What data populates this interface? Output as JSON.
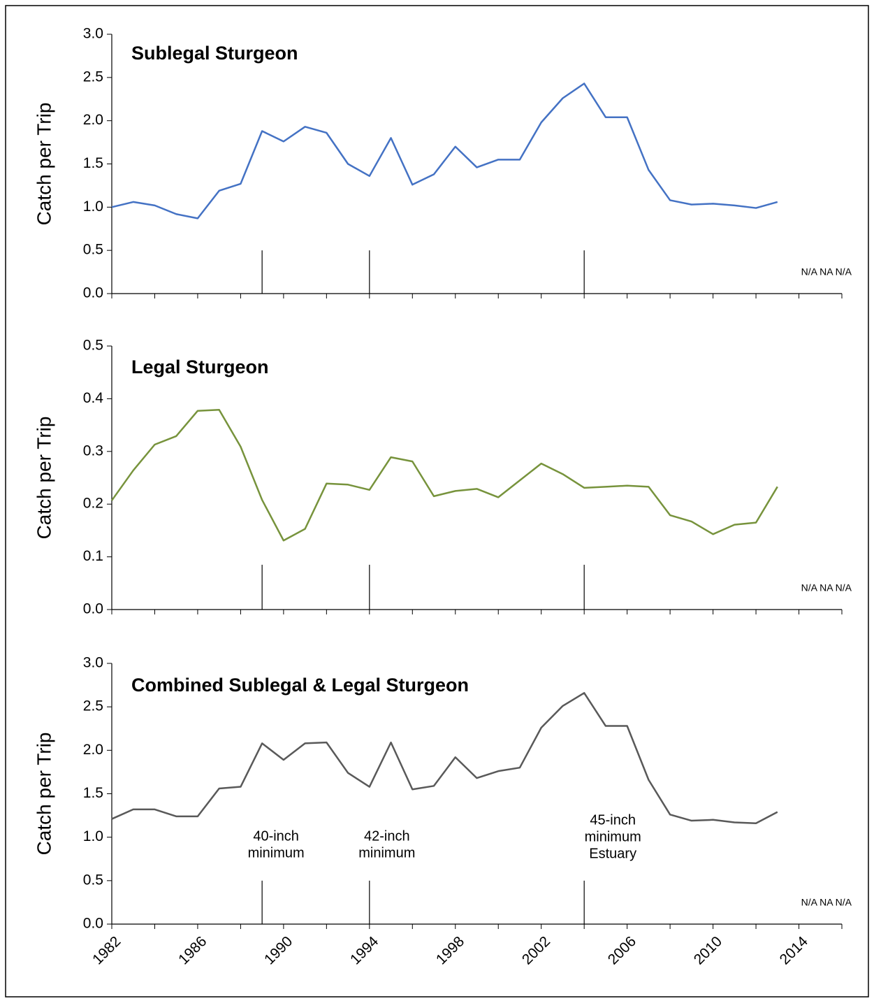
{
  "chart_data": [
    {
      "type": "line",
      "title": "Sublegal Sturgeon",
      "title_color": "#1a237e",
      "ylabel": "Catch per Trip",
      "color": "#4472c4",
      "x": [
        1982,
        1983,
        1984,
        1985,
        1986,
        1987,
        1988,
        1989,
        1990,
        1991,
        1992,
        1993,
        1994,
        1995,
        1996,
        1997,
        1998,
        1999,
        2000,
        2001,
        2002,
        2003,
        2004,
        2005,
        2006,
        2007,
        2008,
        2009,
        2010,
        2011,
        2012,
        2013
      ],
      "values": [
        1.0,
        1.06,
        1.02,
        0.92,
        0.87,
        1.19,
        1.27,
        1.88,
        1.76,
        1.93,
        1.86,
        1.5,
        1.36,
        1.8,
        1.26,
        1.38,
        1.7,
        1.46,
        1.55,
        1.55,
        1.98,
        2.26,
        2.43,
        2.04,
        2.04,
        1.43,
        1.08,
        1.03,
        1.04,
        1.02,
        0.99,
        1.06
      ],
      "xlim": [
        1982,
        2016
      ],
      "xticks": [
        1982,
        1986,
        1990,
        1994,
        1998,
        2002,
        2006,
        2010,
        2014
      ],
      "xtick_labels": false,
      "ylim": [
        0,
        3
      ],
      "yticks": [
        {
          "value": 0,
          "label": "0.0"
        },
        0.5,
        {
          "value": 1,
          "label": "1.0"
        },
        1.5,
        {
          "value": 2,
          "label": "2.0"
        },
        2.5,
        {
          "value": 3,
          "label": "3.0"
        }
      ],
      "markers": [
        {
          "x": 1989
        },
        {
          "x": 1994
        },
        {
          "x": 2004
        }
      ],
      "marker_top": 0.5,
      "note": "N/A NA N/A"
    },
    {
      "type": "line",
      "title": "Legal Sturgeon",
      "title_color": "#9a9a3c",
      "ylabel": "Catch per Trip",
      "color": "#77933c",
      "x": [
        1982,
        1983,
        1984,
        1985,
        1986,
        1987,
        1988,
        1989,
        1990,
        1991,
        1992,
        1993,
        1994,
        1995,
        1996,
        1997,
        1998,
        1999,
        2000,
        2001,
        2002,
        2003,
        2004,
        2005,
        2006,
        2007,
        2008,
        2009,
        2010,
        2011,
        2012,
        2013
      ],
      "values": [
        0.207,
        0.264,
        0.313,
        0.329,
        0.377,
        0.379,
        0.309,
        0.208,
        0.131,
        0.153,
        0.239,
        0.237,
        0.227,
        0.289,
        0.281,
        0.215,
        0.225,
        0.229,
        0.213,
        0.245,
        0.277,
        0.257,
        0.231,
        0.233,
        0.235,
        0.233,
        0.179,
        0.167,
        0.143,
        0.161,
        0.165,
        0.233
      ],
      "xlim": [
        1982,
        2016
      ],
      "xticks": [
        1982,
        1986,
        1990,
        1994,
        1998,
        2002,
        2006,
        2010,
        2014
      ],
      "xtick_labels": false,
      "ylim": [
        0,
        0.5
      ],
      "yticks": [
        {
          "value": 0,
          "label": "0.0"
        },
        0.1,
        0.2,
        0.3,
        0.4,
        0.5
      ],
      "markers": [
        {
          "x": 1989
        },
        {
          "x": 1994
        },
        {
          "x": 2004
        }
      ],
      "marker_top": 0.085,
      "note": "N/A NA N/A"
    },
    {
      "type": "line",
      "title": "Combined Sublegal & Legal Sturgeon",
      "title_color": "#333333",
      "ylabel": "Catch per Trip",
      "color": "#595959",
      "x": [
        1982,
        1983,
        1984,
        1985,
        1986,
        1987,
        1988,
        1989,
        1990,
        1991,
        1992,
        1993,
        1994,
        1995,
        1996,
        1997,
        1998,
        1999,
        2000,
        2001,
        2002,
        2003,
        2004,
        2005,
        2006,
        2007,
        2008,
        2009,
        2010,
        2011,
        2012,
        2013
      ],
      "values": [
        1.21,
        1.32,
        1.32,
        1.24,
        1.24,
        1.56,
        1.58,
        2.08,
        1.89,
        2.08,
        2.09,
        1.74,
        1.58,
        2.09,
        1.55,
        1.59,
        1.92,
        1.68,
        1.76,
        1.8,
        2.26,
        2.51,
        2.66,
        2.28,
        2.28,
        1.66,
        1.26,
        1.19,
        1.2,
        1.17,
        1.16,
        1.29
      ],
      "xlim": [
        1982,
        2016
      ],
      "xticks": [
        1982,
        1986,
        1990,
        1994,
        1998,
        2002,
        2006,
        2010,
        2014
      ],
      "xtick_labels": true,
      "ylim": [
        0,
        3
      ],
      "yticks": [
        {
          "value": 0,
          "label": "0.0"
        },
        0.5,
        {
          "value": 1,
          "label": "1.0"
        },
        1.5,
        {
          "value": 2,
          "label": "2.0"
        },
        2.5,
        {
          "value": 3,
          "label": "3.0"
        }
      ],
      "markers": [
        {
          "x": 1989,
          "lines": [
            "40-inch",
            "minimum"
          ]
        },
        {
          "x": 1994,
          "lines": [
            "42-inch",
            "minimum"
          ]
        },
        {
          "x": 2004,
          "lines": [
            "45-inch",
            "minimum",
            "Estuary"
          ]
        }
      ],
      "marker_top": 0.5,
      "note": "N/A NA N/A"
    }
  ]
}
